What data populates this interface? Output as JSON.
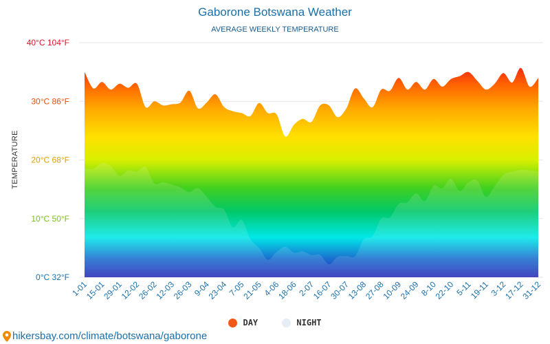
{
  "chart_data": {
    "type": "area",
    "title": "Gaborone Botswana Weather",
    "subtitle": "AVERAGE WEEKLY TEMPERATURE",
    "ylabel": "TEMPERATURE",
    "xlabel": "",
    "ylim": [
      0,
      40
    ],
    "yticks": [
      {
        "value": 0,
        "label": "0°C 32°F",
        "color": "#1a6faa"
      },
      {
        "value": 10,
        "label": "10°C 50°F",
        "color": "#7bbf1a"
      },
      {
        "value": 20,
        "label": "20°C 68°F",
        "color": "#e0a000"
      },
      {
        "value": 30,
        "label": "30°C 86°F",
        "color": "#e05010"
      },
      {
        "value": 40,
        "label": "40°C 104°F",
        "color": "#e0102a"
      }
    ],
    "x_tick_labels": [
      "1-01",
      "15-01",
      "29-01",
      "12-02",
      "26-02",
      "12-03",
      "26-03",
      "9-04",
      "23-04",
      "7-05",
      "21-05",
      "4-06",
      "18-06",
      "2-07",
      "16-07",
      "30-07",
      "13-08",
      "27-08",
      "10-09",
      "24-09",
      "8-10",
      "22-10",
      "5-11",
      "19-11",
      "3-12",
      "17-12",
      "31-12"
    ],
    "grid": true,
    "legend_position": "bottom",
    "series": [
      {
        "name": "DAY",
        "color": "#f05a14",
        "values": [
          35.0,
          32.2,
          33.3,
          32.0,
          33.0,
          32.3,
          33.0,
          29.0,
          30.0,
          29.3,
          29.5,
          29.8,
          31.8,
          28.8,
          29.8,
          31.2,
          29.0,
          28.3,
          28.0,
          27.5,
          29.7,
          28.0,
          27.8,
          24.0,
          26.0,
          27.0,
          26.5,
          29.3,
          29.3,
          27.3,
          28.8,
          32.2,
          30.5,
          29.0,
          32.0,
          31.8,
          34.0,
          32.0,
          33.3,
          32.0,
          33.8,
          32.5,
          33.8,
          34.3,
          35.0,
          33.5,
          32.0,
          33.0,
          34.8,
          33.2,
          35.7,
          32.5,
          34.0
        ]
      },
      {
        "name": "NIGHT",
        "color": "#e6edf5",
        "values": [
          18.5,
          18.5,
          19.5,
          19.0,
          17.3,
          18.2,
          18.0,
          18.8,
          16.0,
          16.2,
          15.8,
          15.3,
          14.5,
          15.2,
          13.7,
          12.0,
          11.5,
          8.5,
          9.8,
          6.5,
          5.0,
          3.0,
          4.3,
          5.2,
          4.2,
          4.4,
          3.8,
          3.8,
          2.2,
          3.5,
          3.6,
          3.6,
          6.5,
          7.0,
          10.0,
          10.2,
          12.5,
          12.8,
          14.3,
          13.0,
          15.6,
          15.2,
          16.8,
          14.7,
          16.2,
          16.5,
          13.7,
          15.5,
          17.5,
          18.0,
          18.3,
          18.2,
          18.0
        ]
      }
    ]
  },
  "legend": {
    "day_label": "DAY",
    "night_label": "NIGHT",
    "day_color": "#f05a14",
    "night_color": "#e6edf5"
  },
  "footer": {
    "text": "hikersbay.com/climate/botswana/gaborone",
    "icon": "map-pin-icon"
  }
}
